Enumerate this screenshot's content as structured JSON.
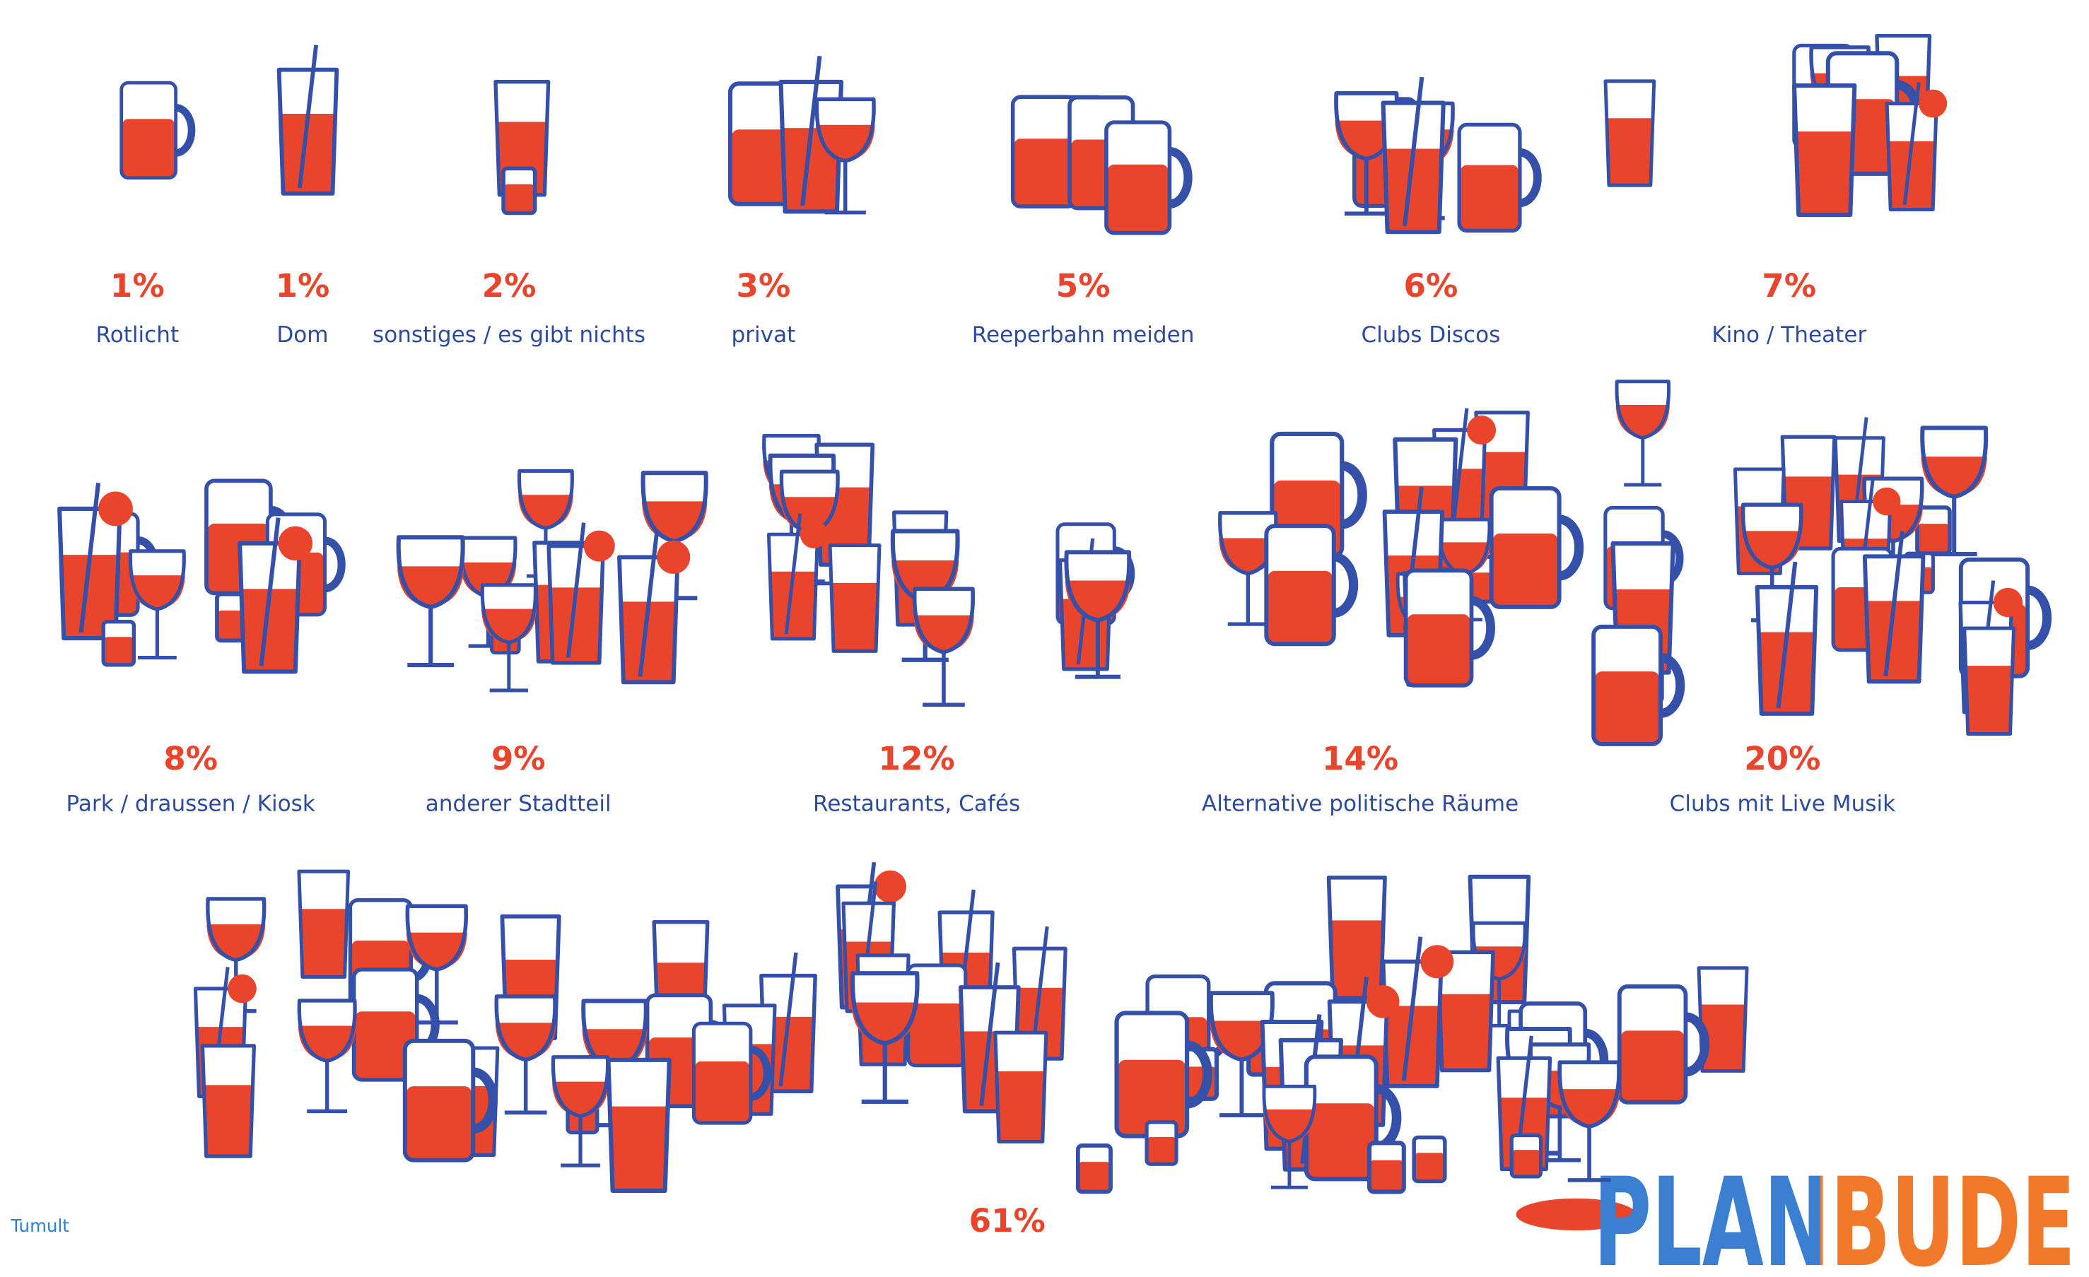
{
  "chart_data": {
    "type": "pictogram",
    "categories": [
      "Rotlicht",
      "Dom",
      "sonstiges / es gibt nichts",
      "privat",
      "Reeperbahn meiden",
      "Clubs Discos",
      "Kino / Theater",
      "Park / draussen / Kiosk",
      "anderer Stadtteil",
      "Restaurants, Cafés",
      "Alternative politische Räume",
      "Clubs mit Live Musik",
      null
    ],
    "values": [
      1,
      1,
      2,
      3,
      5,
      6,
      7,
      8,
      9,
      12,
      14,
      20,
      61
    ],
    "value_labels": [
      "1%",
      "1%",
      "2%",
      "3%",
      "5%",
      "6%",
      "7%",
      "8%",
      "9%",
      "12%",
      "14%",
      "20%",
      "61%"
    ],
    "colors": {
      "liquid": "#e8452c",
      "outline": "#3550a8"
    },
    "source": "Tumult",
    "logo": "PLANBUDE"
  }
}
